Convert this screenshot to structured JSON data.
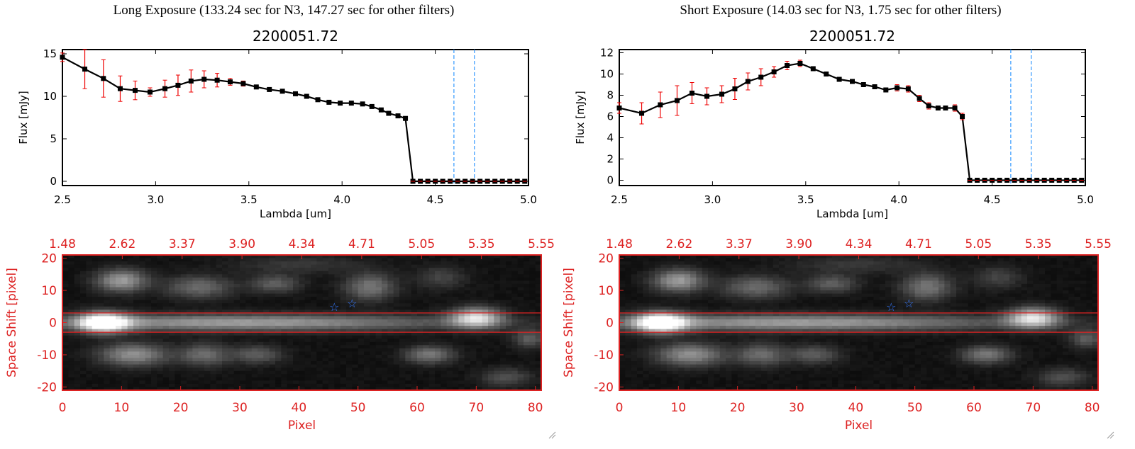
{
  "panels": [
    {
      "header": "Long Exposure (133.24 sec for N3, 147.27 sec for other filters)",
      "chart_data": [
        {
          "type": "line",
          "title": "2200051.72",
          "xlabel": "Lambda [um]",
          "ylabel": "Flux [mJy]",
          "xlim": [
            2.5,
            5.0
          ],
          "ylim": [
            -0.5,
            15.5
          ],
          "xticks": [
            "2.5",
            "3.0",
            "3.5",
            "4.0",
            "4.5",
            "5.0"
          ],
          "yticks": [
            "0",
            "5",
            "10",
            "15"
          ],
          "ytick_values": [
            0,
            5,
            10,
            15
          ],
          "vlines": [
            4.6,
            4.71
          ],
          "series": [
            {
              "x": [
                2.5,
                2.62,
                2.72,
                2.81,
                2.89,
                2.97,
                3.05,
                3.12,
                3.19,
                3.26,
                3.33,
                3.4,
                3.47,
                3.54,
                3.61,
                3.68,
                3.75,
                3.81,
                3.87,
                3.93,
                3.99,
                4.05,
                4.11,
                4.16,
                4.21,
                4.25,
                4.3,
                4.34,
                4.38,
                4.42,
                4.46,
                4.5,
                4.54,
                4.58,
                4.62,
                4.66,
                4.7,
                4.74,
                4.78,
                4.82,
                4.86,
                4.9,
                4.94,
                4.98
              ],
              "y": [
                14.6,
                13.2,
                12.1,
                10.9,
                10.7,
                10.5,
                10.9,
                11.3,
                11.8,
                12.0,
                11.9,
                11.7,
                11.5,
                11.1,
                10.8,
                10.6,
                10.3,
                10.0,
                9.6,
                9.3,
                9.2,
                9.2,
                9.1,
                8.8,
                8.4,
                8.0,
                7.7,
                7.4,
                0,
                0,
                0,
                0,
                0,
                0,
                0,
                0,
                0,
                0,
                0,
                0,
                0,
                0,
                0,
                0
              ],
              "err": [
                0.5,
                2.3,
                2.2,
                1.5,
                1.1,
                0.5,
                1.0,
                1.2,
                1.3,
                1.0,
                0.8,
                0.4,
                0.3,
                0.2,
                0.2,
                0.2,
                0.2,
                0.2,
                0.2,
                0.2,
                0.2,
                0.2,
                0.2,
                0.2,
                0.2,
                0.2,
                0.2,
                0.2,
                0,
                0,
                0,
                0,
                0,
                0,
                0,
                0,
                0,
                0,
                0,
                0,
                0,
                0,
                0,
                0
              ]
            }
          ]
        },
        {
          "type": "heatmap",
          "xlabel": "Pixel",
          "ylabel": "Space Shift [pixel]",
          "xlim": [
            0,
            81
          ],
          "ylim": [
            -21,
            21
          ],
          "xticks": [
            "0",
            "10",
            "20",
            "30",
            "40",
            "50",
            "60",
            "70",
            "80"
          ],
          "yticks": [
            "20",
            "10",
            "0",
            "-10",
            "-20"
          ],
          "ytick_values": [
            20,
            10,
            0,
            -10,
            -20
          ],
          "top_ticks": [
            "1.48",
            "2.62",
            "3.37",
            "3.90",
            "4.34",
            "4.71",
            "5.05",
            "5.35",
            "5.55"
          ],
          "hlines": [
            3,
            -3
          ],
          "stars": [
            {
              "x": 46,
              "y": 5
            },
            {
              "x": 49,
              "y": 6
            }
          ],
          "blobs": [
            {
              "x": 7,
              "y": 0,
              "sx": 3,
              "sy": 2.2,
              "a": 1.0
            },
            {
              "x": 30,
              "y": 0,
              "sx": 26,
              "sy": 1.8,
              "a": 0.55
            },
            {
              "x": 70,
              "y": 1.5,
              "sx": 3,
              "sy": 2.2,
              "a": 0.75
            },
            {
              "x": 10,
              "y": 13,
              "sx": 3,
              "sy": 2.5,
              "a": 0.55
            },
            {
              "x": 23,
              "y": 11,
              "sx": 4,
              "sy": 2.5,
              "a": 0.35
            },
            {
              "x": 36,
              "y": 12,
              "sx": 3,
              "sy": 2,
              "a": 0.3
            },
            {
              "x": 52,
              "y": 11,
              "sx": 3,
              "sy": 3,
              "a": 0.4
            },
            {
              "x": 64,
              "y": 14,
              "sx": 3,
              "sy": 2.5,
              "a": 0.2
            },
            {
              "x": 12,
              "y": -10,
              "sx": 4,
              "sy": 2.5,
              "a": 0.5
            },
            {
              "x": 24,
              "y": -10,
              "sx": 3,
              "sy": 2.5,
              "a": 0.35
            },
            {
              "x": 33,
              "y": -10,
              "sx": 3,
              "sy": 2,
              "a": 0.3
            },
            {
              "x": 62,
              "y": -10,
              "sx": 3,
              "sy": 2,
              "a": 0.4
            },
            {
              "x": 79,
              "y": -5,
              "sx": 2,
              "sy": 2,
              "a": 0.3
            },
            {
              "x": 75,
              "y": -17,
              "sx": 3,
              "sy": 2,
              "a": 0.25
            },
            {
              "x": 40,
              "y": 18,
              "sx": 8,
              "sy": 2,
              "a": 0.15
            }
          ]
        }
      ]
    },
    {
      "header": "Short Exposure (14.03 sec for N3, 1.75 sec for other filters)",
      "chart_data": [
        {
          "type": "line",
          "title": "2200051.72",
          "xlabel": "Lambda [um]",
          "ylabel": "Flux [mJy]",
          "xlim": [
            2.5,
            5.0
          ],
          "ylim": [
            -0.5,
            12.3
          ],
          "xticks": [
            "2.5",
            "3.0",
            "3.5",
            "4.0",
            "4.5",
            "5.0"
          ],
          "yticks": [
            "0",
            "2",
            "4",
            "6",
            "8",
            "10",
            "12"
          ],
          "ytick_values": [
            0,
            2,
            4,
            6,
            8,
            10,
            12
          ],
          "vlines": [
            4.6,
            4.71
          ],
          "series": [
            {
              "x": [
                2.5,
                2.62,
                2.72,
                2.81,
                2.89,
                2.97,
                3.05,
                3.12,
                3.19,
                3.26,
                3.33,
                3.4,
                3.47,
                3.54,
                3.61,
                3.68,
                3.75,
                3.81,
                3.87,
                3.93,
                3.99,
                4.05,
                4.11,
                4.16,
                4.21,
                4.25,
                4.3,
                4.34,
                4.38,
                4.42,
                4.46,
                4.5,
                4.54,
                4.58,
                4.62,
                4.66,
                4.7,
                4.74,
                4.78,
                4.82,
                4.86,
                4.9,
                4.94,
                4.98
              ],
              "y": [
                6.8,
                6.3,
                7.1,
                7.5,
                8.2,
                7.9,
                8.1,
                8.6,
                9.3,
                9.7,
                10.2,
                10.8,
                11.0,
                10.5,
                10.0,
                9.5,
                9.3,
                9.0,
                8.8,
                8.5,
                8.7,
                8.6,
                7.7,
                7.0,
                6.8,
                6.8,
                6.8,
                6.0,
                0,
                0,
                0,
                0,
                0,
                0,
                0,
                0,
                0,
                0,
                0,
                0,
                0,
                0,
                0,
                0
              ],
              "err": [
                0.5,
                1.0,
                1.2,
                1.4,
                1.0,
                0.8,
                0.8,
                1.0,
                0.8,
                0.8,
                0.5,
                0.4,
                0.3,
                0.2,
                0.2,
                0.2,
                0.2,
                0.2,
                0.2,
                0.2,
                0.3,
                0.3,
                0.3,
                0.3,
                0.2,
                0.2,
                0.3,
                0.3,
                0,
                0,
                0,
                0,
                0,
                0,
                0,
                0,
                0,
                0,
                0,
                0,
                0,
                0,
                0,
                0
              ]
            }
          ]
        },
        {
          "type": "heatmap",
          "xlabel": "Pixel",
          "ylabel": "Space Shift [pixel]",
          "xlim": [
            0,
            81
          ],
          "ylim": [
            -21,
            21
          ],
          "xticks": [
            "0",
            "10",
            "20",
            "30",
            "40",
            "50",
            "60",
            "70",
            "80"
          ],
          "yticks": [
            "20",
            "10",
            "0",
            "-10",
            "-20"
          ],
          "ytick_values": [
            20,
            10,
            0,
            -10,
            -20
          ],
          "top_ticks": [
            "1.48",
            "2.62",
            "3.37",
            "3.90",
            "4.34",
            "4.71",
            "5.05",
            "5.35",
            "5.55"
          ],
          "hlines": [
            3,
            -3
          ],
          "stars": [
            {
              "x": 46,
              "y": 5
            },
            {
              "x": 49,
              "y": 6
            }
          ],
          "blobs": [
            {
              "x": 7,
              "y": 0,
              "sx": 3,
              "sy": 2.2,
              "a": 1.0
            },
            {
              "x": 30,
              "y": 0,
              "sx": 26,
              "sy": 1.8,
              "a": 0.55
            },
            {
              "x": 70,
              "y": 1.5,
              "sx": 3,
              "sy": 2.2,
              "a": 0.75
            },
            {
              "x": 10,
              "y": 13,
              "sx": 3,
              "sy": 2.5,
              "a": 0.55
            },
            {
              "x": 23,
              "y": 11,
              "sx": 4,
              "sy": 2.5,
              "a": 0.35
            },
            {
              "x": 36,
              "y": 12,
              "sx": 3,
              "sy": 2,
              "a": 0.3
            },
            {
              "x": 52,
              "y": 11,
              "sx": 3,
              "sy": 3,
              "a": 0.4
            },
            {
              "x": 64,
              "y": 14,
              "sx": 3,
              "sy": 2.5,
              "a": 0.2
            },
            {
              "x": 12,
              "y": -10,
              "sx": 4,
              "sy": 2.5,
              "a": 0.5
            },
            {
              "x": 24,
              "y": -10,
              "sx": 3,
              "sy": 2.5,
              "a": 0.35
            },
            {
              "x": 33,
              "y": -10,
              "sx": 3,
              "sy": 2,
              "a": 0.3
            },
            {
              "x": 62,
              "y": -10,
              "sx": 3,
              "sy": 2,
              "a": 0.4
            },
            {
              "x": 79,
              "y": -5,
              "sx": 2,
              "sy": 2,
              "a": 0.3
            },
            {
              "x": 75,
              "y": -17,
              "sx": 3,
              "sy": 2,
              "a": 0.25
            },
            {
              "x": 40,
              "y": 18,
              "sx": 8,
              "sy": 2,
              "a": 0.15
            }
          ]
        }
      ]
    }
  ],
  "colors": {
    "axis_red": "#dd2222",
    "errorbar": "#ee0000",
    "marker": "#000000",
    "vline": "#3399ff",
    "star": "#3377ff"
  }
}
